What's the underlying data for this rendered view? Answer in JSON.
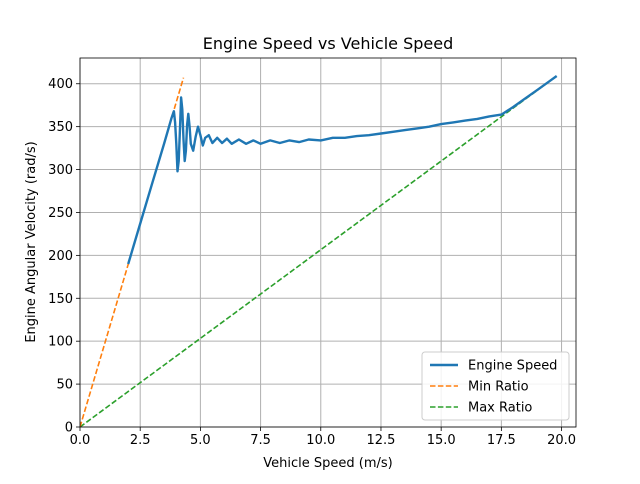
{
  "chart_data": {
    "type": "line",
    "title": "Engine Speed vs Vehicle Speed",
    "xlabel": "Vehicle Speed (m/s)",
    "ylabel": "Engine Angular Velocity (rad/s)",
    "xlim": [
      0.0,
      20.6
    ],
    "ylim": [
      0,
      430
    ],
    "xticks": [
      0.0,
      2.5,
      5.0,
      7.5,
      10.0,
      12.5,
      15.0,
      17.5,
      20.0
    ],
    "xtick_labels": [
      "0.0",
      "2.5",
      "5.0",
      "7.5",
      "10.0",
      "12.5",
      "15.0",
      "17.5",
      "20.0"
    ],
    "yticks": [
      0,
      50,
      100,
      150,
      200,
      250,
      300,
      350,
      400
    ],
    "ytick_labels": [
      "0",
      "50",
      "100",
      "150",
      "200",
      "250",
      "300",
      "350",
      "400"
    ],
    "grid": true,
    "legend_position": "lower-right",
    "series": [
      {
        "name": "Engine Speed",
        "color": "#1f77b4",
        "style": "solid",
        "points": [
          [
            2.0,
            190
          ],
          [
            2.5,
            237
          ],
          [
            3.0,
            284
          ],
          [
            3.5,
            331
          ],
          [
            3.8,
            360
          ],
          [
            3.9,
            368
          ],
          [
            3.95,
            355
          ],
          [
            4.0,
            330
          ],
          [
            4.05,
            298
          ],
          [
            4.1,
            310
          ],
          [
            4.15,
            345
          ],
          [
            4.2,
            384
          ],
          [
            4.25,
            370
          ],
          [
            4.3,
            335
          ],
          [
            4.35,
            310
          ],
          [
            4.4,
            322
          ],
          [
            4.45,
            352
          ],
          [
            4.5,
            365
          ],
          [
            4.55,
            350
          ],
          [
            4.6,
            330
          ],
          [
            4.7,
            322
          ],
          [
            4.8,
            338
          ],
          [
            4.9,
            350
          ],
          [
            5.0,
            340
          ],
          [
            5.1,
            328
          ],
          [
            5.2,
            337
          ],
          [
            5.35,
            340
          ],
          [
            5.5,
            331
          ],
          [
            5.7,
            337
          ],
          [
            5.9,
            331
          ],
          [
            6.1,
            336
          ],
          [
            6.3,
            330
          ],
          [
            6.6,
            335
          ],
          [
            6.9,
            330
          ],
          [
            7.2,
            334
          ],
          [
            7.5,
            330
          ],
          [
            7.9,
            334
          ],
          [
            8.3,
            331
          ],
          [
            8.7,
            334
          ],
          [
            9.1,
            332
          ],
          [
            9.5,
            335
          ],
          [
            10.0,
            334
          ],
          [
            10.5,
            337
          ],
          [
            11.0,
            337
          ],
          [
            11.5,
            339
          ],
          [
            12.0,
            340
          ],
          [
            12.5,
            342
          ],
          [
            13.0,
            344
          ],
          [
            13.5,
            346
          ],
          [
            14.0,
            348
          ],
          [
            14.5,
            350
          ],
          [
            15.0,
            353
          ],
          [
            15.5,
            355
          ],
          [
            16.0,
            357
          ],
          [
            16.5,
            359
          ],
          [
            17.0,
            362
          ],
          [
            17.5,
            364
          ],
          [
            18.0,
            373
          ],
          [
            18.5,
            383
          ],
          [
            19.0,
            393
          ],
          [
            19.5,
            403
          ],
          [
            19.8,
            409
          ]
        ]
      },
      {
        "name": "Min Ratio",
        "color": "#ff7f0e",
        "style": "dashed",
        "points": [
          [
            0.0,
            0
          ],
          [
            4.3,
            407
          ]
        ]
      },
      {
        "name": "Max Ratio",
        "color": "#2ca02c",
        "style": "dashed",
        "points": [
          [
            0.0,
            0
          ],
          [
            19.8,
            409
          ]
        ]
      }
    ]
  }
}
